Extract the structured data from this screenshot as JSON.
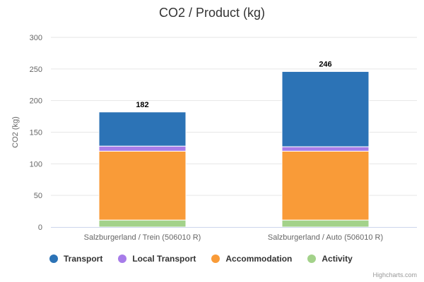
{
  "chart_data": {
    "type": "bar",
    "stacked": true,
    "title": "CO2  /  Product (kg)",
    "ylabel": "CO2 (kg)",
    "xlabel": "",
    "ylim": [
      0,
      300
    ],
    "yticks": [
      0,
      50,
      100,
      150,
      200,
      250,
      300
    ],
    "categories": [
      "Salzburgerland / Trein (506010 R)",
      "Salzburgerland / Auto (506010 R)"
    ],
    "totals": [
      182,
      246
    ],
    "series": [
      {
        "name": "Activity",
        "color": "#a3d28a",
        "values": [
          11,
          11
        ]
      },
      {
        "name": "Accommodation",
        "color": "#f99b38",
        "values": [
          109,
          109
        ]
      },
      {
        "name": "Local Transport",
        "color": "#a77ce9",
        "values": [
          8,
          7
        ]
      },
      {
        "name": "Transport",
        "color": "#2c73b6",
        "values": [
          54,
          119
        ]
      }
    ],
    "legend_order": [
      "Transport",
      "Local Transport",
      "Accommodation",
      "Activity"
    ]
  },
  "credits": "Highcharts.com"
}
